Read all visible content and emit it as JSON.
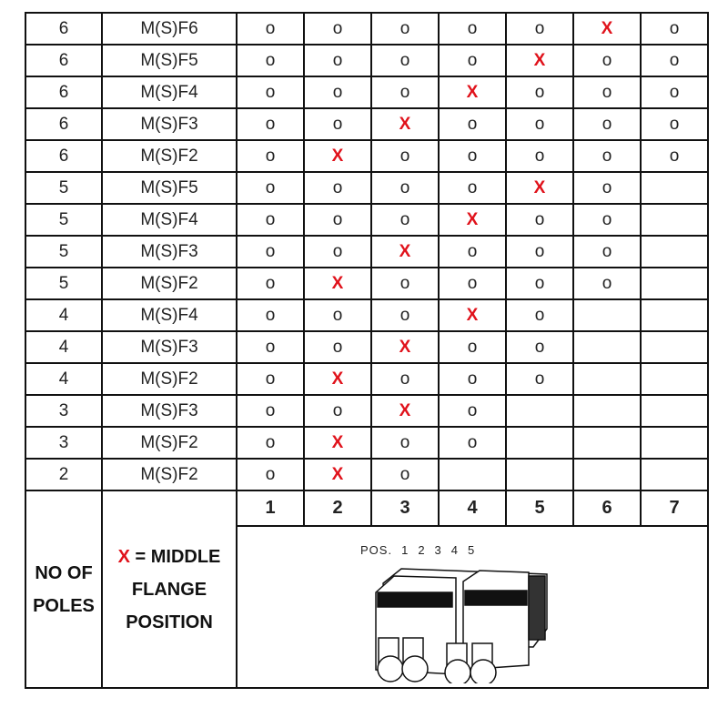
{
  "rows": [
    {
      "poles": "6",
      "type": "M(S)F6",
      "cells": [
        "o",
        "o",
        "o",
        "o",
        "o",
        "X",
        "o"
      ]
    },
    {
      "poles": "6",
      "type": "M(S)F5",
      "cells": [
        "o",
        "o",
        "o",
        "o",
        "X",
        "o",
        "o"
      ]
    },
    {
      "poles": "6",
      "type": "M(S)F4",
      "cells": [
        "o",
        "o",
        "o",
        "X",
        "o",
        "o",
        "o"
      ]
    },
    {
      "poles": "6",
      "type": "M(S)F3",
      "cells": [
        "o",
        "o",
        "X",
        "o",
        "o",
        "o",
        "o"
      ]
    },
    {
      "poles": "6",
      "type": "M(S)F2",
      "cells": [
        "o",
        "X",
        "o",
        "o",
        "o",
        "o",
        "o"
      ]
    },
    {
      "poles": "5",
      "type": "M(S)F5",
      "cells": [
        "o",
        "o",
        "o",
        "o",
        "X",
        "o",
        ""
      ]
    },
    {
      "poles": "5",
      "type": "M(S)F4",
      "cells": [
        "o",
        "o",
        "o",
        "X",
        "o",
        "o",
        ""
      ]
    },
    {
      "poles": "5",
      "type": "M(S)F3",
      "cells": [
        "o",
        "o",
        "X",
        "o",
        "o",
        "o",
        ""
      ]
    },
    {
      "poles": "5",
      "type": "M(S)F2",
      "cells": [
        "o",
        "X",
        "o",
        "o",
        "o",
        "o",
        ""
      ]
    },
    {
      "poles": "4",
      "type": "M(S)F4",
      "cells": [
        "o",
        "o",
        "o",
        "X",
        "o",
        "",
        ""
      ]
    },
    {
      "poles": "4",
      "type": "M(S)F3",
      "cells": [
        "o",
        "o",
        "X",
        "o",
        "o",
        "",
        ""
      ]
    },
    {
      "poles": "4",
      "type": "M(S)F2",
      "cells": [
        "o",
        "X",
        "o",
        "o",
        "o",
        "",
        ""
      ]
    },
    {
      "poles": "3",
      "type": "M(S)F3",
      "cells": [
        "o",
        "o",
        "X",
        "o",
        "",
        "",
        ""
      ]
    },
    {
      "poles": "3",
      "type": "M(S)F2",
      "cells": [
        "o",
        "X",
        "o",
        "o",
        "",
        "",
        ""
      ]
    },
    {
      "poles": "2",
      "type": "M(S)F2",
      "cells": [
        "o",
        "X",
        "o",
        "",
        "",
        "",
        ""
      ]
    }
  ],
  "positions": [
    "1",
    "2",
    "3",
    "4",
    "5",
    "6",
    "7"
  ],
  "legend": {
    "poles_line1": "NO OF",
    "poles_line2": "POLES",
    "x_mark": "X",
    "x_text": " = MIDDLE",
    "line2": "FLANGE",
    "line3": "POSITION"
  },
  "diagram": {
    "pos_label": "POS.",
    "pos_numbers": [
      "1",
      "2",
      "3",
      "4",
      "5"
    ]
  },
  "colors": {
    "marker": "#e0121b",
    "border": "#111111"
  }
}
